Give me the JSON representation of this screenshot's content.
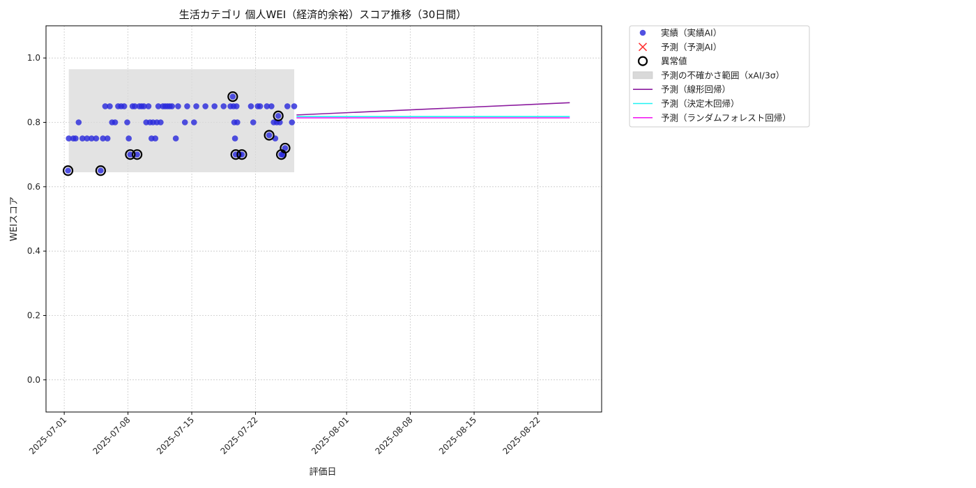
{
  "chart_data": {
    "type": "scatter",
    "title": "生活カテゴリ 個人WEI（経済的余裕）スコア推移（30日間）",
    "xlabel": "評価日",
    "ylabel": "WEIスコア",
    "xlim": [
      "2025-06-29",
      "2025-08-29"
    ],
    "ylim": [
      -0.1,
      1.1
    ],
    "x_ticks": [
      "2025-07-01",
      "2025-07-08",
      "2025-07-15",
      "2025-07-22",
      "2025-08-01",
      "2025-08-08",
      "2025-08-15",
      "2025-08-22"
    ],
    "y_ticks": [
      "0.0",
      "0.2",
      "0.4",
      "0.6",
      "0.8",
      "1.0"
    ],
    "grid": true,
    "legend_position": "outside-top-right",
    "colors": {
      "actual": "#2b2bdc",
      "predicted": "#ff3333",
      "anomaly": "#000000",
      "band": "#d9d9d9",
      "linear": "#8b1a9e",
      "tree": "#1ff2f2",
      "forest": "#f21ff2"
    },
    "legend": [
      {
        "key": "actual",
        "label": "実績（実績AI）",
        "symbol": "dot"
      },
      {
        "key": "predicted",
        "label": "予測（予測AI）",
        "symbol": "x"
      },
      {
        "key": "anomaly",
        "label": "異常値",
        "symbol": "ring"
      },
      {
        "key": "band",
        "label": "予測の不確かさ範囲（xAI/3σ）",
        "symbol": "rect"
      },
      {
        "key": "linear",
        "label": "予測（線形回帰）",
        "symbol": "line"
      },
      {
        "key": "tree",
        "label": "予測（決定木回帰）",
        "symbol": "line"
      },
      {
        "key": "forest",
        "label": "予測（ランダムフォレスト回帰）",
        "symbol": "line"
      }
    ],
    "uncertainty_band": {
      "x_start": "2025-07-01T12:00",
      "x_end": "2025-07-26T06:00",
      "y_low": 0.645,
      "y_high": 0.965
    },
    "actual_points": [
      [
        "2025-07-01T10:00",
        0.65
      ],
      [
        "2025-07-01T12:00",
        0.75
      ],
      [
        "2025-07-02T00:00",
        0.75
      ],
      [
        "2025-07-02T06:00",
        0.75
      ],
      [
        "2025-07-02T14:00",
        0.8
      ],
      [
        "2025-07-03T00:00",
        0.75
      ],
      [
        "2025-07-03T12:00",
        0.75
      ],
      [
        "2025-07-04T00:00",
        0.75
      ],
      [
        "2025-07-04T12:00",
        0.75
      ],
      [
        "2025-07-05T00:00",
        0.65
      ],
      [
        "2025-07-05T06:00",
        0.75
      ],
      [
        "2025-07-05T12:00",
        0.85
      ],
      [
        "2025-07-05T18:00",
        0.75
      ],
      [
        "2025-07-06T00:00",
        0.85
      ],
      [
        "2025-07-06T06:00",
        0.8
      ],
      [
        "2025-07-06T14:00",
        0.8
      ],
      [
        "2025-07-06T22:00",
        0.85
      ],
      [
        "2025-07-07T06:00",
        0.85
      ],
      [
        "2025-07-07T14:00",
        0.85
      ],
      [
        "2025-07-07T22:00",
        0.8
      ],
      [
        "2025-07-08T02:00",
        0.75
      ],
      [
        "2025-07-08T06:00",
        0.7
      ],
      [
        "2025-07-08T12:00",
        0.85
      ],
      [
        "2025-07-08T18:00",
        0.85
      ],
      [
        "2025-07-09T00:00",
        0.7
      ],
      [
        "2025-07-09T06:00",
        0.85
      ],
      [
        "2025-07-09T12:00",
        0.85
      ],
      [
        "2025-07-09T18:00",
        0.85
      ],
      [
        "2025-07-10T00:00",
        0.8
      ],
      [
        "2025-07-10T06:00",
        0.85
      ],
      [
        "2025-07-10T10:00",
        0.8
      ],
      [
        "2025-07-10T14:00",
        0.75
      ],
      [
        "2025-07-10T18:00",
        0.8
      ],
      [
        "2025-07-11T00:00",
        0.75
      ],
      [
        "2025-07-11T04:00",
        0.8
      ],
      [
        "2025-07-11T08:00",
        0.85
      ],
      [
        "2025-07-11T14:00",
        0.8
      ],
      [
        "2025-07-11T20:00",
        0.85
      ],
      [
        "2025-07-12T02:00",
        0.85
      ],
      [
        "2025-07-12T08:00",
        0.85
      ],
      [
        "2025-07-12T14:00",
        0.85
      ],
      [
        "2025-07-12T20:00",
        0.85
      ],
      [
        "2025-07-13T06:00",
        0.75
      ],
      [
        "2025-07-13T12:00",
        0.85
      ],
      [
        "2025-07-14T06:00",
        0.8
      ],
      [
        "2025-07-14T12:00",
        0.85
      ],
      [
        "2025-07-15T06:00",
        0.8
      ],
      [
        "2025-07-15T12:00",
        0.85
      ],
      [
        "2025-07-16T12:00",
        0.85
      ],
      [
        "2025-07-17T12:00",
        0.85
      ],
      [
        "2025-07-18T12:00",
        0.85
      ],
      [
        "2025-07-19T06:00",
        0.85
      ],
      [
        "2025-07-19T12:00",
        0.88
      ],
      [
        "2025-07-19T14:00",
        0.85
      ],
      [
        "2025-07-19T16:00",
        0.8
      ],
      [
        "2025-07-19T18:00",
        0.75
      ],
      [
        "2025-07-19T20:00",
        0.7
      ],
      [
        "2025-07-19T22:00",
        0.85
      ],
      [
        "2025-07-20T00:00",
        0.8
      ],
      [
        "2025-07-20T06:00",
        0.7
      ],
      [
        "2025-07-20T12:00",
        0.7
      ],
      [
        "2025-07-21T12:00",
        0.85
      ],
      [
        "2025-07-21T18:00",
        0.8
      ],
      [
        "2025-07-22T06:00",
        0.85
      ],
      [
        "2025-07-22T12:00",
        0.85
      ],
      [
        "2025-07-23T06:00",
        0.85
      ],
      [
        "2025-07-23T12:00",
        0.76
      ],
      [
        "2025-07-23T18:00",
        0.85
      ],
      [
        "2025-07-24T00:00",
        0.8
      ],
      [
        "2025-07-24T04:00",
        0.75
      ],
      [
        "2025-07-24T08:00",
        0.8
      ],
      [
        "2025-07-24T12:00",
        0.82
      ],
      [
        "2025-07-24T16:00",
        0.8
      ],
      [
        "2025-07-24T20:00",
        0.7
      ],
      [
        "2025-07-25T00:00",
        0.7
      ],
      [
        "2025-07-25T06:00",
        0.72
      ],
      [
        "2025-07-25T12:00",
        0.85
      ],
      [
        "2025-07-26T00:00",
        0.8
      ],
      [
        "2025-07-26T06:00",
        0.85
      ]
    ],
    "anomaly_points": [
      [
        "2025-07-01T10:00",
        0.65
      ],
      [
        "2025-07-05T00:00",
        0.65
      ],
      [
        "2025-07-08T06:00",
        0.7
      ],
      [
        "2025-07-09T00:00",
        0.7
      ],
      [
        "2025-07-19T12:00",
        0.88
      ],
      [
        "2025-07-19T20:00",
        0.7
      ],
      [
        "2025-07-20T12:00",
        0.7
      ],
      [
        "2025-07-23T12:00",
        0.76
      ],
      [
        "2025-07-24T12:00",
        0.82
      ],
      [
        "2025-07-24T20:00",
        0.7
      ],
      [
        "2025-07-25T06:00",
        0.72
      ]
    ],
    "series": [
      {
        "key": "linear",
        "name": "予測（線形回帰）",
        "x": [
          "2025-07-26T12:00",
          "2025-08-25T12:00"
        ],
        "y": [
          0.823,
          0.861
        ]
      },
      {
        "key": "tree",
        "name": "予測（決定木回帰）",
        "x": [
          "2025-07-26T12:00",
          "2025-08-25T12:00"
        ],
        "y": [
          0.818,
          0.818
        ]
      },
      {
        "key": "forest",
        "name": "予測（ランダムフォレスト回帰）",
        "x": [
          "2025-07-26T12:00",
          "2025-08-25T12:00"
        ],
        "y": [
          0.814,
          0.814
        ]
      }
    ]
  }
}
